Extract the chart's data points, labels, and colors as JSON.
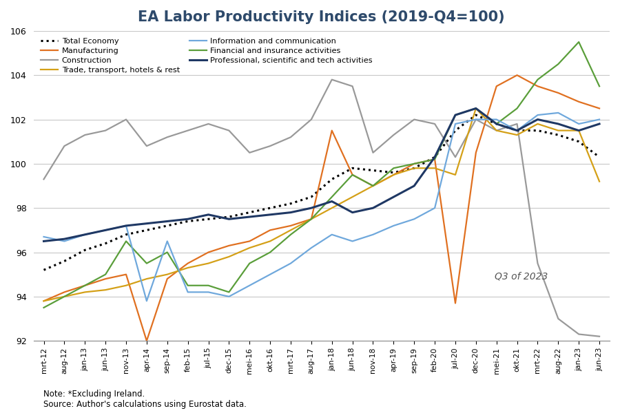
{
  "title": "EA Labor Productivity Indices (2019-Q4=100)",
  "note": "Note: *Excluding Ireland.\nSource: Author's calculations using Eurostat data.",
  "annotation": "Q3 of 2023",
  "ylim": [
    92,
    106
  ],
  "yticks": [
    92,
    94,
    96,
    98,
    100,
    102,
    104,
    106
  ],
  "x_labels": [
    "mrt-12",
    "aug-12",
    "jan-13",
    "jun-13",
    "nov-13",
    "apr-14",
    "sep-14",
    "feb-15",
    "jul-15",
    "dec-15",
    "mei-16",
    "okt-16",
    "mrt-17",
    "aug-17",
    "jan-18",
    "jun-18",
    "nov-18",
    "apr-19",
    "sep-19",
    "feb-20",
    "jul-20",
    "dec-20",
    "mei-21",
    "okt-21",
    "mrt-22",
    "aug-22",
    "jan-23",
    "jun-23"
  ],
  "series": {
    "Total Economy": {
      "color": "#000000",
      "linestyle": "dotted",
      "linewidth": 2.2,
      "values": [
        95.2,
        95.6,
        96.1,
        96.4,
        96.8,
        97.0,
        97.2,
        97.4,
        97.5,
        97.6,
        97.8,
        98.0,
        98.2,
        98.5,
        99.3,
        99.8,
        99.7,
        99.6,
        99.8,
        100.3,
        101.5,
        102.2,
        101.8,
        101.5,
        101.5,
        101.3,
        101.0,
        100.3
      ]
    },
    "Construction": {
      "color": "#999999",
      "linestyle": "solid",
      "linewidth": 1.6,
      "values": [
        99.3,
        100.8,
        101.3,
        101.5,
        102.0,
        100.8,
        101.2,
        101.5,
        101.8,
        101.5,
        100.5,
        100.8,
        101.2,
        102.0,
        103.8,
        103.5,
        100.5,
        101.3,
        102.0,
        101.8,
        100.3,
        102.0,
        101.5,
        101.8,
        95.5,
        93.0,
        92.3,
        92.2
      ]
    },
    "Information and communication": {
      "color": "#6fa8dc",
      "linestyle": "solid",
      "linewidth": 1.6,
      "values": [
        96.7,
        96.5,
        96.8,
        97.0,
        97.2,
        93.8,
        96.5,
        94.2,
        94.2,
        94.0,
        94.5,
        95.0,
        95.5,
        96.2,
        96.8,
        96.5,
        96.8,
        97.2,
        97.5,
        98.0,
        101.8,
        102.0,
        102.0,
        101.5,
        102.2,
        102.3,
        101.8,
        102.0
      ]
    },
    "Professional, scientific and tech activities": {
      "color": "#1f3864",
      "linestyle": "solid",
      "linewidth": 2.2,
      "values": [
        96.5,
        96.6,
        96.8,
        97.0,
        97.2,
        97.3,
        97.4,
        97.5,
        97.7,
        97.5,
        97.6,
        97.7,
        97.8,
        98.0,
        98.3,
        97.8,
        98.0,
        98.5,
        99.0,
        100.3,
        102.2,
        102.5,
        101.8,
        101.5,
        102.0,
        101.8,
        101.5,
        101.8
      ]
    },
    "Manufacturing": {
      "color": "#e07020",
      "linestyle": "solid",
      "linewidth": 1.6,
      "values": [
        93.8,
        94.2,
        94.5,
        94.8,
        95.0,
        92.0,
        94.8,
        95.5,
        96.0,
        96.3,
        96.5,
        97.0,
        97.2,
        97.5,
        101.5,
        99.5,
        99.0,
        99.5,
        100.0,
        100.2,
        93.7,
        100.5,
        103.5,
        104.0,
        103.5,
        103.2,
        102.8,
        102.5
      ]
    },
    "Trade, transport, hotels & rest": {
      "color": "#d4a017",
      "linestyle": "solid",
      "linewidth": 1.6,
      "values": [
        93.8,
        94.0,
        94.2,
        94.3,
        94.5,
        94.8,
        95.0,
        95.3,
        95.5,
        95.8,
        96.2,
        96.5,
        97.0,
        97.5,
        98.0,
        98.5,
        99.0,
        99.5,
        99.8,
        99.8,
        99.5,
        102.5,
        101.5,
        101.3,
        101.8,
        101.5,
        101.5,
        99.2
      ]
    },
    "Financial and insurance activities": {
      "color": "#5a9e3a",
      "linestyle": "solid",
      "linewidth": 1.6,
      "values": [
        93.5,
        94.0,
        94.5,
        95.0,
        96.5,
        95.5,
        96.0,
        94.5,
        94.5,
        94.2,
        95.5,
        96.0,
        96.8,
        97.5,
        98.5,
        99.5,
        99.0,
        99.8,
        100.0,
        100.2,
        102.2,
        102.5,
        101.8,
        102.5,
        103.8,
        104.5,
        105.5,
        103.5
      ]
    }
  },
  "legend_order": [
    "Total Economy",
    "Manufacturing",
    "Construction",
    "Trade, transport, hotels & rest",
    "Information and communication",
    "Financial and insurance activities",
    "Professional, scientific and tech activities"
  ],
  "background_color": "#ffffff",
  "grid_color": "#c8c8c8",
  "title_color": "#2e4a6b",
  "title_fontsize": 15
}
